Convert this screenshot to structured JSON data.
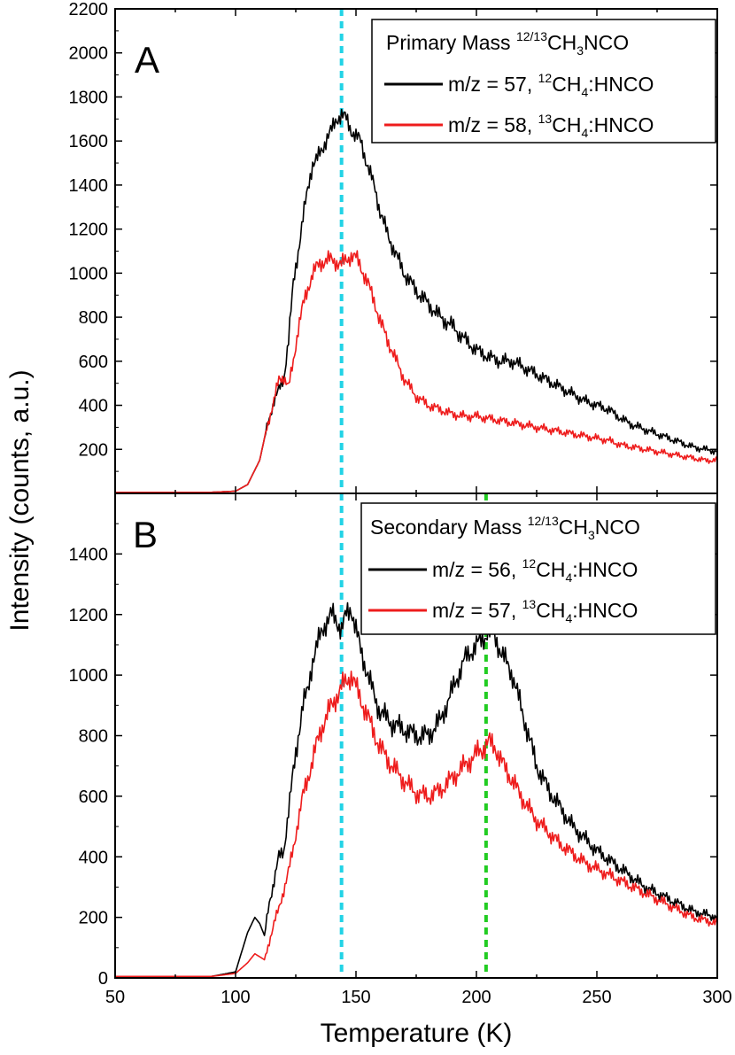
{
  "figure": {
    "ylabel": "Intensity (counts, a.u.)",
    "xlabel": "Temperature (K)"
  },
  "colors": {
    "series_black": "#000000",
    "series_red": "#ee1c1c",
    "cyan_line": "#22d3e6",
    "green_line": "#22cc22"
  },
  "chart_data": [
    {
      "type": "line",
      "panel_label": "A",
      "xlim": [
        50,
        300
      ],
      "ylim": [
        0,
        2200
      ],
      "yticks": [
        200,
        400,
        600,
        800,
        1000,
        1200,
        1400,
        1600,
        1800,
        2000,
        2200
      ],
      "legend": {
        "title": "Primary Mass ",
        "title_sup": "12/13",
        "title_rest": "CH",
        "title_sub": "3",
        "title_end": "NCO",
        "placement": "top-right"
      },
      "vlines": [
        {
          "x": 144,
          "color": "cyan"
        }
      ],
      "series": [
        {
          "name": "m/z = 57, 12CH4:HNCO",
          "label_pre": "m/z = 57, ",
          "label_sup": "12",
          "label_mid": "CH",
          "label_sub": "4",
          "label_post": ":HNCO",
          "color": "black",
          "x": [
            50,
            60,
            70,
            80,
            90,
            100,
            105,
            110,
            113,
            116,
            118,
            120,
            122,
            124,
            126,
            128,
            130,
            132,
            134,
            136,
            138,
            140,
            142,
            144,
            146,
            148,
            150,
            152,
            155,
            158,
            160,
            163,
            166,
            170,
            175,
            180,
            185,
            190,
            195,
            200,
            205,
            210,
            215,
            220,
            225,
            230,
            235,
            240,
            245,
            250,
            255,
            260,
            265,
            270,
            275,
            280,
            285,
            290,
            295,
            300
          ],
          "y": [
            5,
            5,
            5,
            5,
            5,
            10,
            40,
            150,
            300,
            420,
            470,
            520,
            700,
            950,
            1100,
            1250,
            1380,
            1500,
            1520,
            1560,
            1620,
            1650,
            1700,
            1720,
            1700,
            1650,
            1620,
            1600,
            1480,
            1380,
            1280,
            1180,
            1100,
            1000,
            920,
            860,
            800,
            760,
            700,
            650,
            620,
            600,
            600,
            570,
            540,
            510,
            480,
            450,
            420,
            400,
            380,
            340,
            310,
            290,
            270,
            250,
            230,
            210,
            200,
            190
          ]
        },
        {
          "name": "m/z = 58, 13CH4:HNCO",
          "label_pre": "m/z = 58, ",
          "label_sup": "13",
          "label_mid": "CH",
          "label_sub": "4",
          "label_post": ":HNCO",
          "color": "red",
          "x": [
            50,
            60,
            70,
            80,
            90,
            100,
            105,
            110,
            113,
            116,
            118,
            120,
            122,
            124,
            126,
            128,
            130,
            132,
            134,
            136,
            138,
            140,
            142,
            144,
            146,
            148,
            150,
            152,
            155,
            158,
            160,
            163,
            166,
            170,
            175,
            180,
            185,
            190,
            195,
            200,
            205,
            210,
            215,
            220,
            225,
            230,
            235,
            240,
            245,
            250,
            255,
            260,
            265,
            270,
            275,
            280,
            285,
            290,
            295,
            300
          ],
          "y": [
            5,
            5,
            5,
            5,
            5,
            10,
            40,
            150,
            300,
            420,
            520,
            530,
            480,
            600,
            750,
            850,
            930,
            1000,
            1030,
            1050,
            1060,
            1060,
            1050,
            1040,
            1060,
            1080,
            1070,
            1030,
            950,
            860,
            780,
            700,
            620,
            520,
            440,
            400,
            380,
            360,
            350,
            350,
            340,
            330,
            320,
            310,
            300,
            290,
            280,
            270,
            260,
            250,
            240,
            220,
            210,
            200,
            190,
            180,
            170,
            160,
            150,
            150
          ]
        }
      ]
    },
    {
      "type": "line",
      "panel_label": "B",
      "xlim": [
        50,
        300
      ],
      "ylim": [
        0,
        1600
      ],
      "yticks": [
        0,
        200,
        400,
        600,
        800,
        1000,
        1200,
        1400
      ],
      "xticks": [
        50,
        100,
        150,
        200,
        250,
        300
      ],
      "legend": {
        "title": "Secondary Mass ",
        "title_sup": "12/13",
        "title_rest": "CH",
        "title_sub": "3",
        "title_end": "NCO",
        "placement": "top-right"
      },
      "vlines": [
        {
          "x": 144,
          "color": "cyan"
        },
        {
          "x": 204,
          "color": "green"
        }
      ],
      "series": [
        {
          "name": "m/z = 56, 12CH4:HNCO",
          "label_pre": "m/z = 56, ",
          "label_sup": "12",
          "label_mid": "CH",
          "label_sub": "4",
          "label_post": ":HNCO",
          "color": "black",
          "x": [
            50,
            60,
            70,
            80,
            90,
            100,
            105,
            108,
            110,
            112,
            114,
            116,
            118,
            120,
            122,
            124,
            126,
            128,
            130,
            132,
            134,
            136,
            138,
            140,
            142,
            144,
            146,
            148,
            150,
            152,
            155,
            158,
            160,
            165,
            170,
            175,
            180,
            185,
            190,
            195,
            200,
            203,
            205,
            208,
            210,
            215,
            220,
            225,
            230,
            235,
            240,
            245,
            250,
            255,
            260,
            265,
            270,
            275,
            280,
            285,
            290,
            295,
            300
          ],
          "y": [
            5,
            5,
            5,
            5,
            5,
            20,
            150,
            200,
            180,
            140,
            250,
            320,
            400,
            420,
            550,
            680,
            800,
            900,
            950,
            1050,
            1100,
            1150,
            1180,
            1200,
            1180,
            1150,
            1200,
            1220,
            1150,
            1080,
            1000,
            920,
            880,
            840,
            820,
            800,
            800,
            850,
            950,
            1050,
            1100,
            1120,
            1150,
            1120,
            1080,
            1000,
            850,
            700,
            620,
            560,
            500,
            460,
            420,
            390,
            360,
            330,
            300,
            280,
            260,
            240,
            220,
            210,
            200
          ]
        },
        {
          "name": "m/z = 57, 13CH4:HNCO",
          "label_pre": "m/z = 57, ",
          "label_sup": "13",
          "label_mid": "CH",
          "label_sub": "4",
          "label_post": ":HNCO",
          "color": "red",
          "x": [
            50,
            60,
            70,
            80,
            90,
            100,
            105,
            108,
            110,
            112,
            114,
            116,
            118,
            120,
            122,
            124,
            126,
            128,
            130,
            132,
            134,
            136,
            138,
            140,
            142,
            144,
            146,
            148,
            150,
            152,
            155,
            158,
            160,
            165,
            170,
            175,
            180,
            185,
            190,
            195,
            200,
            203,
            205,
            208,
            210,
            215,
            220,
            225,
            230,
            235,
            240,
            245,
            250,
            255,
            260,
            265,
            270,
            275,
            280,
            285,
            290,
            295,
            300
          ],
          "y": [
            5,
            5,
            5,
            5,
            5,
            15,
            50,
            80,
            70,
            60,
            120,
            180,
            230,
            290,
            350,
            430,
            520,
            600,
            660,
            720,
            780,
            830,
            870,
            900,
            930,
            960,
            980,
            1000,
            960,
            920,
            860,
            800,
            760,
            700,
            650,
            610,
            600,
            620,
            660,
            700,
            740,
            760,
            780,
            760,
            720,
            650,
            580,
            520,
            480,
            440,
            410,
            380,
            360,
            340,
            320,
            300,
            280,
            260,
            240,
            220,
            200,
            190,
            180
          ]
        }
      ]
    }
  ]
}
